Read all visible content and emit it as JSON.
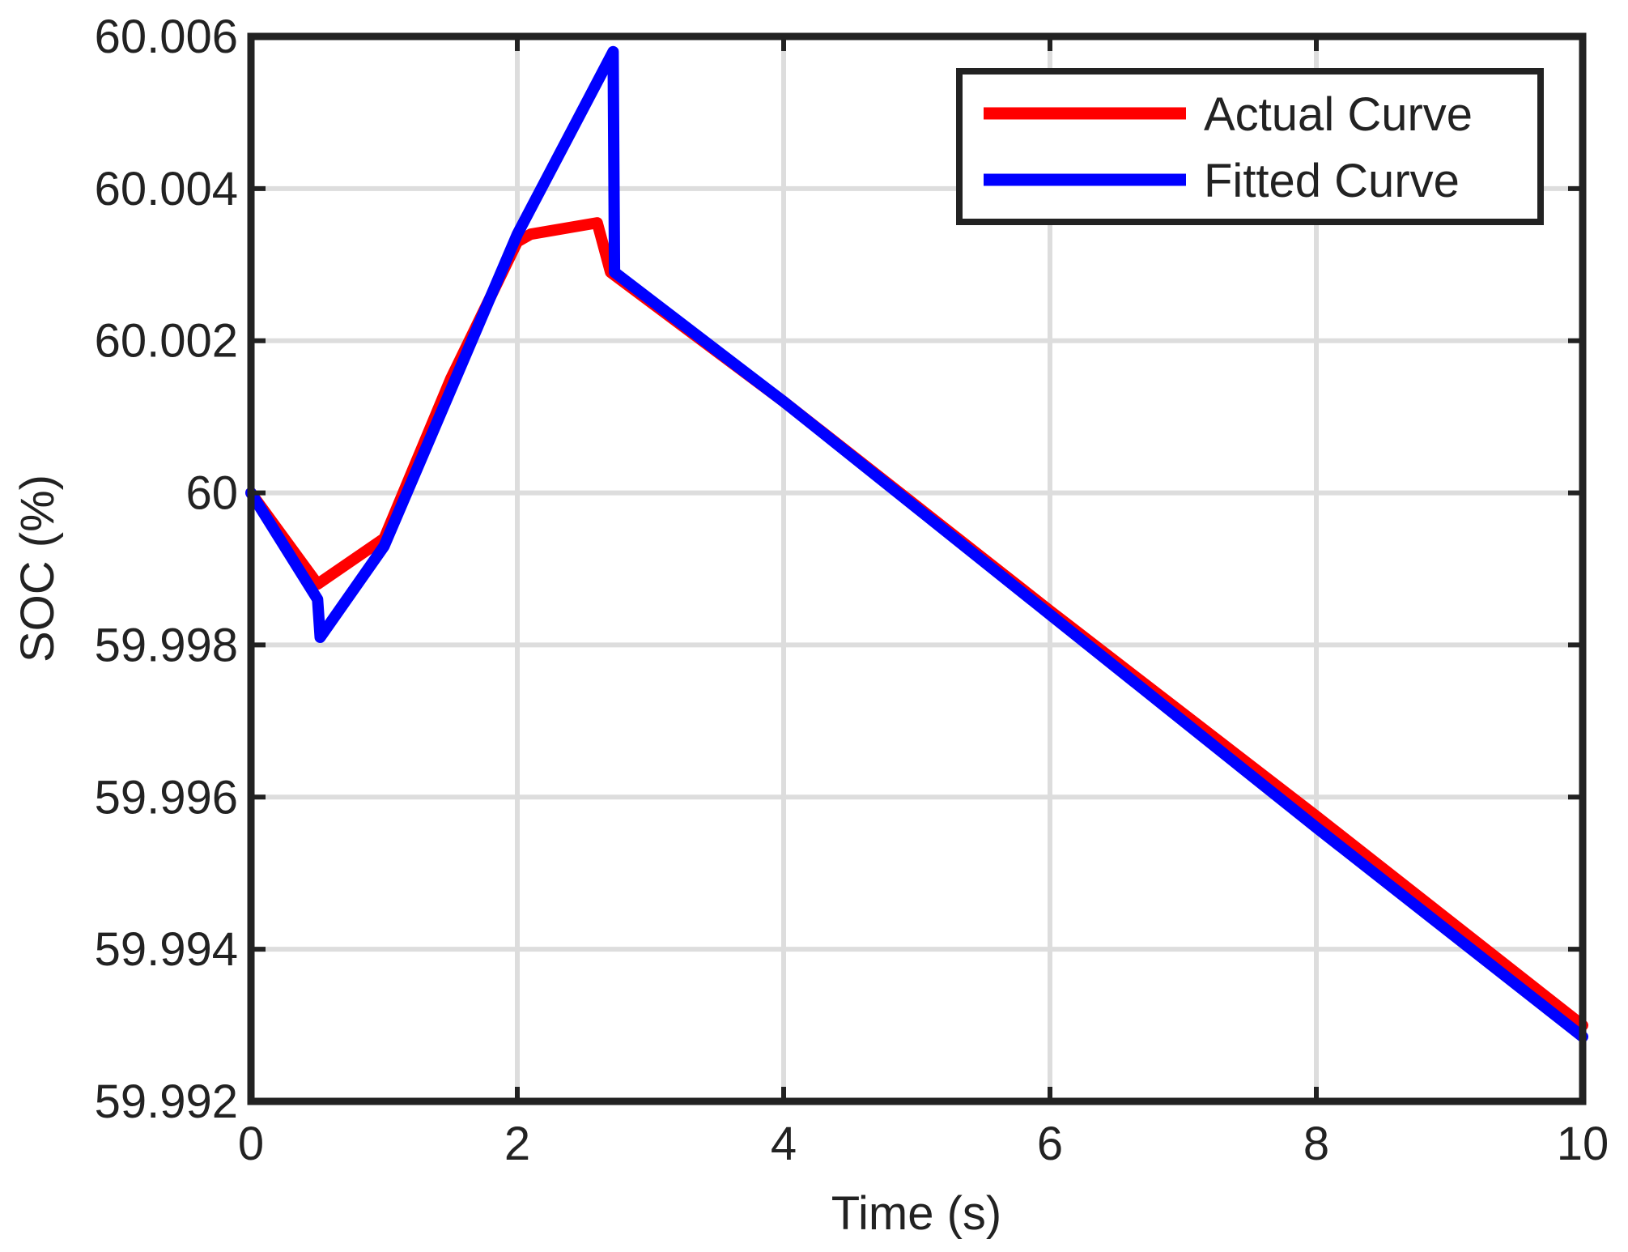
{
  "chart_data": {
    "type": "line",
    "title": "",
    "xlabel": "Time (s)",
    "ylabel": "SOC (%)",
    "xlim": [
      0,
      10
    ],
    "ylim": [
      59.992,
      60.006
    ],
    "x_ticks": [
      0,
      2,
      4,
      6,
      8,
      10
    ],
    "x_tick_labels": [
      "0",
      "2",
      "4",
      "6",
      "8",
      "10"
    ],
    "y_ticks": [
      59.992,
      59.994,
      59.996,
      59.998,
      60,
      60.002,
      60.004,
      60.006
    ],
    "y_tick_labels": [
      "59.992",
      "59.994",
      "59.996",
      "59.998",
      "60",
      "60.002",
      "60.004",
      "60.006"
    ],
    "grid": true,
    "legend_position": "top-right",
    "series": [
      {
        "name": "Actual Curve",
        "color": "#ff0000",
        "points": [
          [
            0,
            60.0
          ],
          [
            0.5,
            59.9988
          ],
          [
            1.0,
            59.9994
          ],
          [
            1.5,
            60.0015
          ],
          [
            2.0,
            60.0033
          ],
          [
            2.1,
            60.0034
          ],
          [
            2.6,
            60.00355
          ],
          [
            2.7,
            60.0029
          ],
          [
            4.0,
            60.0012
          ],
          [
            6.0,
            59.99845
          ],
          [
            8.0,
            59.99575
          ],
          [
            10.0,
            59.993
          ]
        ]
      },
      {
        "name": "Fitted Curve",
        "color": "#0000ff",
        "points": [
          [
            0,
            60.0
          ],
          [
            0.5,
            59.9986
          ],
          [
            0.52,
            59.9981
          ],
          [
            1.0,
            59.9993
          ],
          [
            2.0,
            60.0034
          ],
          [
            2.72,
            60.0058
          ],
          [
            2.73,
            60.0029
          ],
          [
            4.0,
            60.0012
          ],
          [
            6.0,
            59.9984
          ],
          [
            8.0,
            59.9956
          ],
          [
            10.0,
            59.99285
          ]
        ]
      }
    ]
  }
}
